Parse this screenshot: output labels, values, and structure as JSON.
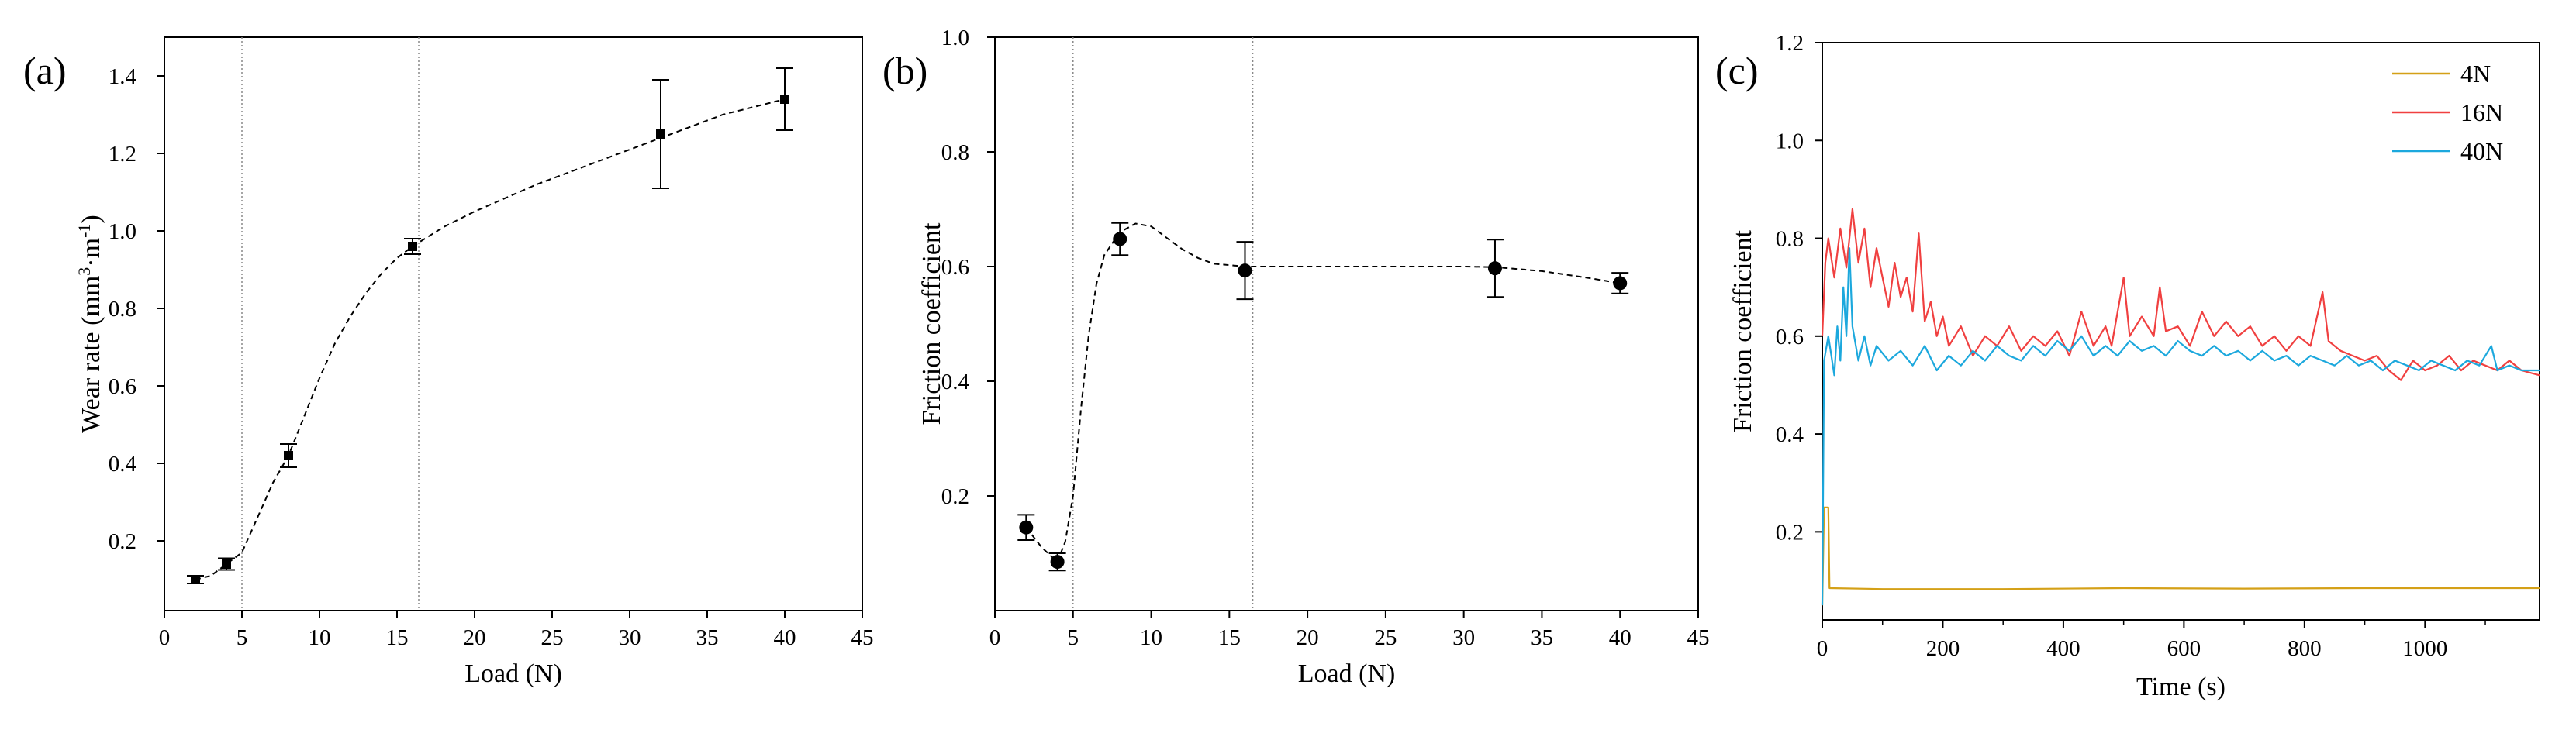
{
  "chart_data": [
    {
      "panel_label": "(a)",
      "type": "scatter",
      "title": "",
      "xlabel": "Load  (N)",
      "ylabel_main": "Wear rate (mm",
      "ylabel_sup1": "3",
      "ylabel_mid": "·m",
      "ylabel_sup2": "-1",
      "ylabel_end": ")",
      "xlim": [
        0,
        45
      ],
      "ylim": [
        0.02,
        1.5
      ],
      "xticks": [
        0,
        5,
        10,
        15,
        20,
        25,
        30,
        35,
        40,
        45
      ],
      "yticks": [
        0.2,
        0.4,
        0.6,
        0.8,
        1.0,
        1.2,
        1.4
      ],
      "ytick_labels": [
        "0.2",
        "0.4",
        "0.6",
        "0.8",
        "1.0",
        "1.2",
        "1.4"
      ],
      "marker": "square",
      "points": [
        {
          "x": 2,
          "y": 0.1,
          "err": 0.01
        },
        {
          "x": 4,
          "y": 0.14,
          "err": 0.015
        },
        {
          "x": 8,
          "y": 0.42,
          "err": 0.03
        },
        {
          "x": 16,
          "y": 0.96,
          "err": 0.02
        },
        {
          "x": 32,
          "y": 1.25,
          "err": 0.14
        },
        {
          "x": 40,
          "y": 1.34,
          "err": 0.08
        }
      ],
      "fit_curve": [
        [
          2,
          0.1
        ],
        [
          3,
          0.11
        ],
        [
          4,
          0.14
        ],
        [
          5,
          0.17
        ],
        [
          6,
          0.26
        ],
        [
          7,
          0.35
        ],
        [
          8,
          0.42
        ],
        [
          9,
          0.52
        ],
        [
          10,
          0.62
        ],
        [
          11,
          0.71
        ],
        [
          12,
          0.78
        ],
        [
          13,
          0.84
        ],
        [
          14,
          0.89
        ],
        [
          15,
          0.93
        ],
        [
          16,
          0.96
        ],
        [
          18,
          1.01
        ],
        [
          20,
          1.05
        ],
        [
          24,
          1.12
        ],
        [
          28,
          1.18
        ],
        [
          32,
          1.24
        ],
        [
          36,
          1.3
        ],
        [
          40,
          1.34
        ]
      ],
      "vlines": [
        5,
        16.4
      ]
    },
    {
      "panel_label": "(b)",
      "type": "scatter",
      "title": "",
      "xlabel": "Load (N)",
      "ylabel": "Friction coefficient",
      "xlim": [
        0,
        45
      ],
      "ylim": [
        0,
        1.0
      ],
      "xticks": [
        0,
        5,
        10,
        15,
        20,
        25,
        30,
        35,
        40,
        45
      ],
      "yticks": [
        0.2,
        0.4,
        0.6,
        0.8,
        1.0
      ],
      "ytick_labels": [
        "0.2",
        "0.4",
        "0.6",
        "0.8",
        "1.0"
      ],
      "marker": "circle",
      "points": [
        {
          "x": 2,
          "y": 0.145,
          "err": 0.022
        },
        {
          "x": 4,
          "y": 0.085,
          "err": 0.015
        },
        {
          "x": 8,
          "y": 0.648,
          "err": 0.028
        },
        {
          "x": 16,
          "y": 0.593,
          "err": 0.05
        },
        {
          "x": 32,
          "y": 0.597,
          "err": 0.05
        },
        {
          "x": 40,
          "y": 0.571,
          "err": 0.018
        }
      ],
      "fit_curve": [
        [
          2,
          0.145
        ],
        [
          3,
          0.11
        ],
        [
          4,
          0.085
        ],
        [
          4.5,
          0.12
        ],
        [
          5,
          0.2
        ],
        [
          5.5,
          0.35
        ],
        [
          6,
          0.48
        ],
        [
          6.5,
          0.57
        ],
        [
          7,
          0.62
        ],
        [
          8,
          0.66
        ],
        [
          9,
          0.675
        ],
        [
          10,
          0.67
        ],
        [
          11,
          0.65
        ],
        [
          12,
          0.63
        ],
        [
          13,
          0.615
        ],
        [
          14,
          0.605
        ],
        [
          16,
          0.6
        ],
        [
          20,
          0.6
        ],
        [
          25,
          0.6
        ],
        [
          30,
          0.6
        ],
        [
          32,
          0.599
        ],
        [
          35,
          0.592
        ],
        [
          38,
          0.58
        ],
        [
          40,
          0.571
        ]
      ],
      "vlines": [
        5,
        16.5
      ]
    },
    {
      "panel_label": "(c)",
      "type": "line",
      "title": "",
      "xlabel": "Time (s)",
      "ylabel": "Friction coefficient",
      "xlim": [
        0,
        1190
      ],
      "ylim": [
        0.02,
        1.2
      ],
      "xticks": [
        0,
        200,
        400,
        600,
        800,
        1000
      ],
      "yticks": [
        0.2,
        0.4,
        0.6,
        0.8,
        1.0,
        1.2
      ],
      "ytick_labels": [
        "0.2",
        "0.4",
        "0.6",
        "0.8",
        "1.0",
        "1.2"
      ],
      "legend_position": "top-right",
      "series": [
        {
          "name": "4N",
          "color": "#D4A017",
          "points": [
            [
              0,
              0.05
            ],
            [
              3,
              0.25
            ],
            [
              10,
              0.25
            ],
            [
              12,
              0.085
            ],
            [
              100,
              0.083
            ],
            [
              300,
              0.083
            ],
            [
              500,
              0.085
            ],
            [
              700,
              0.084
            ],
            [
              900,
              0.085
            ],
            [
              1100,
              0.085
            ],
            [
              1190,
              0.085
            ]
          ]
        },
        {
          "name": "16N",
          "color": "#F04040",
          "points": [
            [
              0,
              0.6
            ],
            [
              5,
              0.75
            ],
            [
              10,
              0.8
            ],
            [
              20,
              0.72
            ],
            [
              30,
              0.82
            ],
            [
              40,
              0.74
            ],
            [
              50,
              0.86
            ],
            [
              60,
              0.75
            ],
            [
              70,
              0.82
            ],
            [
              80,
              0.7
            ],
            [
              90,
              0.78
            ],
            [
              100,
              0.72
            ],
            [
              110,
              0.66
            ],
            [
              120,
              0.75
            ],
            [
              130,
              0.68
            ],
            [
              140,
              0.72
            ],
            [
              150,
              0.65
            ],
            [
              160,
              0.81
            ],
            [
              170,
              0.63
            ],
            [
              180,
              0.67
            ],
            [
              190,
              0.6
            ],
            [
              200,
              0.64
            ],
            [
              210,
              0.58
            ],
            [
              230,
              0.62
            ],
            [
              250,
              0.56
            ],
            [
              270,
              0.6
            ],
            [
              290,
              0.58
            ],
            [
              310,
              0.62
            ],
            [
              330,
              0.57
            ],
            [
              350,
              0.6
            ],
            [
              370,
              0.58
            ],
            [
              390,
              0.61
            ],
            [
              410,
              0.56
            ],
            [
              430,
              0.65
            ],
            [
              450,
              0.58
            ],
            [
              470,
              0.62
            ],
            [
              480,
              0.58
            ],
            [
              500,
              0.72
            ],
            [
              510,
              0.6
            ],
            [
              530,
              0.64
            ],
            [
              550,
              0.6
            ],
            [
              560,
              0.7
            ],
            [
              570,
              0.61
            ],
            [
              590,
              0.62
            ],
            [
              610,
              0.58
            ],
            [
              630,
              0.65
            ],
            [
              650,
              0.6
            ],
            [
              670,
              0.63
            ],
            [
              690,
              0.6
            ],
            [
              710,
              0.62
            ],
            [
              730,
              0.58
            ],
            [
              750,
              0.6
            ],
            [
              770,
              0.57
            ],
            [
              790,
              0.6
            ],
            [
              810,
              0.58
            ],
            [
              830,
              0.69
            ],
            [
              840,
              0.59
            ],
            [
              860,
              0.57
            ],
            [
              880,
              0.56
            ],
            [
              900,
              0.55
            ],
            [
              920,
              0.56
            ],
            [
              940,
              0.53
            ],
            [
              960,
              0.51
            ],
            [
              980,
              0.55
            ],
            [
              1000,
              0.53
            ],
            [
              1020,
              0.54
            ],
            [
              1040,
              0.56
            ],
            [
              1060,
              0.53
            ],
            [
              1080,
              0.55
            ],
            [
              1100,
              0.54
            ],
            [
              1120,
              0.53
            ],
            [
              1140,
              0.55
            ],
            [
              1160,
              0.53
            ],
            [
              1190,
              0.52
            ]
          ]
        },
        {
          "name": "40N",
          "color": "#1CA8DD",
          "points": [
            [
              0,
              0.05
            ],
            [
              3,
              0.55
            ],
            [
              10,
              0.6
            ],
            [
              15,
              0.56
            ],
            [
              20,
              0.52
            ],
            [
              25,
              0.62
            ],
            [
              30,
              0.55
            ],
            [
              35,
              0.7
            ],
            [
              40,
              0.6
            ],
            [
              45,
              0.78
            ],
            [
              50,
              0.62
            ],
            [
              60,
              0.55
            ],
            [
              70,
              0.6
            ],
            [
              80,
              0.54
            ],
            [
              90,
              0.58
            ],
            [
              110,
              0.55
            ],
            [
              130,
              0.57
            ],
            [
              150,
              0.54
            ],
            [
              170,
              0.58
            ],
            [
              190,
              0.53
            ],
            [
              210,
              0.56
            ],
            [
              230,
              0.54
            ],
            [
              250,
              0.57
            ],
            [
              270,
              0.55
            ],
            [
              290,
              0.58
            ],
            [
              310,
              0.56
            ],
            [
              330,
              0.55
            ],
            [
              350,
              0.58
            ],
            [
              370,
              0.56
            ],
            [
              390,
              0.59
            ],
            [
              410,
              0.57
            ],
            [
              430,
              0.6
            ],
            [
              450,
              0.56
            ],
            [
              470,
              0.58
            ],
            [
              490,
              0.56
            ],
            [
              510,
              0.59
            ],
            [
              530,
              0.57
            ],
            [
              550,
              0.58
            ],
            [
              570,
              0.56
            ],
            [
              590,
              0.59
            ],
            [
              610,
              0.57
            ],
            [
              630,
              0.56
            ],
            [
              650,
              0.58
            ],
            [
              670,
              0.56
            ],
            [
              690,
              0.57
            ],
            [
              710,
              0.55
            ],
            [
              730,
              0.57
            ],
            [
              750,
              0.55
            ],
            [
              770,
              0.56
            ],
            [
              790,
              0.54
            ],
            [
              810,
              0.56
            ],
            [
              830,
              0.55
            ],
            [
              850,
              0.54
            ],
            [
              870,
              0.56
            ],
            [
              890,
              0.54
            ],
            [
              910,
              0.55
            ],
            [
              930,
              0.53
            ],
            [
              950,
              0.55
            ],
            [
              970,
              0.54
            ],
            [
              990,
              0.53
            ],
            [
              1010,
              0.55
            ],
            [
              1030,
              0.54
            ],
            [
              1050,
              0.53
            ],
            [
              1070,
              0.55
            ],
            [
              1090,
              0.54
            ],
            [
              1110,
              0.58
            ],
            [
              1120,
              0.53
            ],
            [
              1140,
              0.54
            ],
            [
              1160,
              0.53
            ],
            [
              1190,
              0.53
            ]
          ]
        }
      ]
    }
  ]
}
